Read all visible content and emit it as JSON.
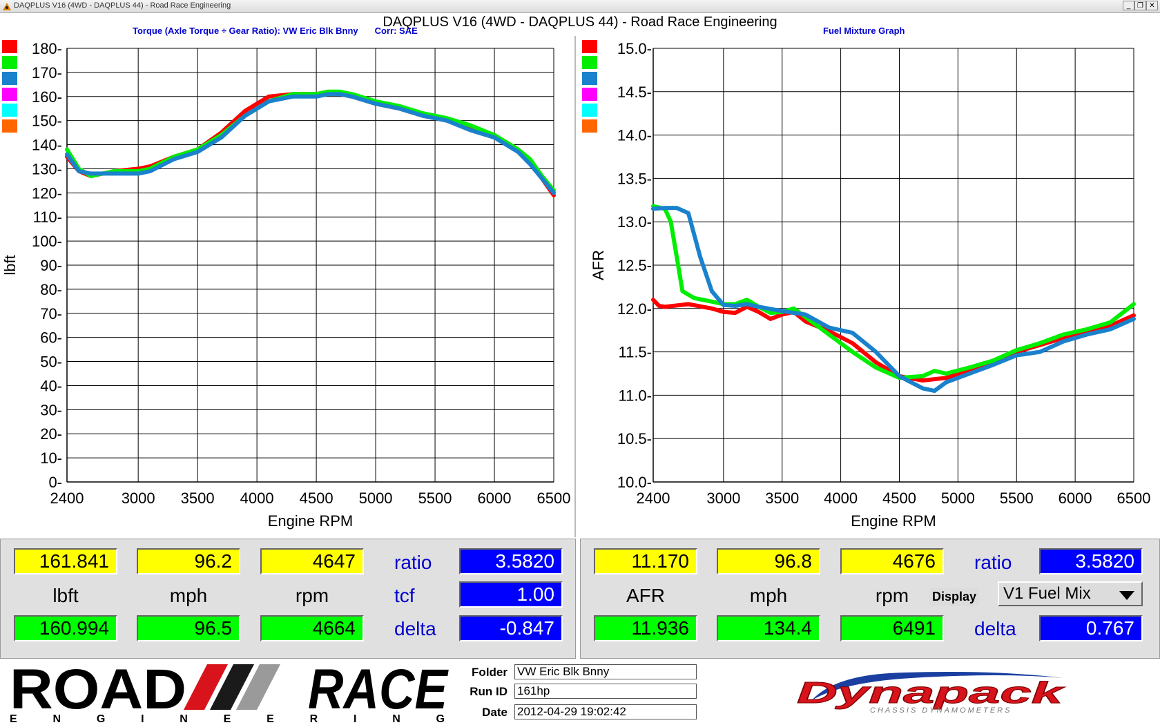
{
  "window": {
    "title": "DAQPLUS V16 (4WD - DAQPLUS 44) - Road Race Engineering",
    "app_title": "DAQPLUS V16 (4WD - DAQPLUS 44) - Road Race Engineering",
    "controls": {
      "minimize": "_",
      "restore": "❐",
      "close": "✕"
    }
  },
  "run_colors": [
    "#ff0000",
    "#00ee00",
    "#1a82cc",
    "#ff00ff",
    "#00ffff",
    "#ff6600"
  ],
  "chart_data": [
    {
      "type": "line",
      "title": "Torque (Axle Torque ÷ Gear Ratio): VW Eric Blk Bnny",
      "subtitle": "Corr: SAE",
      "xlabel": "Engine RPM",
      "ylabel": "lbft",
      "xlim": [
        2400,
        6500
      ],
      "ylim": [
        0,
        180
      ],
      "xticks": [
        2400,
        3000,
        3500,
        4000,
        4500,
        5000,
        5500,
        6000,
        6500
      ],
      "yticks": [
        0,
        10,
        20,
        30,
        40,
        50,
        60,
        70,
        80,
        90,
        100,
        110,
        120,
        130,
        140,
        150,
        160,
        170,
        180
      ],
      "grid": true,
      "series": [
        {
          "color": "#ff0000",
          "x": [
            2400,
            2500,
            2600,
            2800,
            3000,
            3100,
            3300,
            3500,
            3700,
            3900,
            4100,
            4300,
            4500,
            4600,
            4700,
            4800,
            5000,
            5200,
            5400,
            5600,
            5800,
            6000,
            6100,
            6200,
            6300,
            6400,
            6500
          ],
          "y": [
            135,
            129,
            127,
            129,
            130,
            131,
            135,
            138,
            145,
            154,
            160,
            161,
            161,
            162,
            161,
            160,
            157,
            155,
            152,
            150,
            147,
            143,
            141,
            138,
            133,
            126,
            119
          ]
        },
        {
          "color": "#00ee00",
          "x": [
            2400,
            2500,
            2600,
            2800,
            3000,
            3100,
            3300,
            3500,
            3700,
            3900,
            4100,
            4300,
            4500,
            4600,
            4700,
            4800,
            5000,
            5200,
            5400,
            5600,
            5800,
            6000,
            6100,
            6200,
            6300,
            6400,
            6500
          ],
          "y": [
            138,
            130,
            127,
            129,
            129,
            130,
            135,
            138,
            144,
            152,
            158,
            161,
            161,
            162,
            162,
            161,
            158,
            156,
            153,
            151,
            148,
            144,
            141,
            138,
            134,
            127,
            121
          ]
        },
        {
          "color": "#1a82cc",
          "x": [
            2400,
            2500,
            2600,
            2800,
            3000,
            3100,
            3300,
            3500,
            3700,
            3900,
            4100,
            4300,
            4500,
            4600,
            4700,
            4800,
            5000,
            5200,
            5400,
            5600,
            5800,
            6000,
            6100,
            6200,
            6300,
            6400,
            6500
          ],
          "y": [
            136,
            129,
            128,
            128,
            128,
            129,
            134,
            137,
            143,
            152,
            158,
            160,
            160,
            161,
            161,
            160,
            157,
            155,
            152,
            150,
            146,
            143,
            140,
            137,
            132,
            126,
            120
          ]
        }
      ]
    },
    {
      "type": "line",
      "title": "Fuel Mixture Graph",
      "xlabel": "Engine RPM",
      "ylabel": "AFR",
      "xlim": [
        2400,
        6500
      ],
      "ylim": [
        10.0,
        15.0
      ],
      "xticks": [
        2400,
        3000,
        3500,
        4000,
        4500,
        5000,
        5500,
        6000,
        6500
      ],
      "yticks": [
        10.0,
        10.5,
        11.0,
        11.5,
        12.0,
        12.5,
        13.0,
        13.5,
        14.0,
        14.5,
        15.0
      ],
      "grid": true,
      "series": [
        {
          "color": "#ff0000",
          "x": [
            2400,
            2450,
            2500,
            2700,
            2900,
            3000,
            3100,
            3200,
            3300,
            3400,
            3500,
            3600,
            3700,
            3900,
            4100,
            4300,
            4500,
            4700,
            4900,
            5100,
            5300,
            5500,
            5700,
            5900,
            6100,
            6300,
            6500
          ],
          "y": [
            12.1,
            12.03,
            12.02,
            12.05,
            12.0,
            11.96,
            11.95,
            12.02,
            11.96,
            11.88,
            11.93,
            11.96,
            11.85,
            11.74,
            11.6,
            11.38,
            11.22,
            11.17,
            11.2,
            11.28,
            11.38,
            11.5,
            11.58,
            11.66,
            11.73,
            11.8,
            11.92
          ]
        },
        {
          "color": "#00ee00",
          "x": [
            2400,
            2500,
            2550,
            2600,
            2650,
            2750,
            2900,
            3000,
            3100,
            3200,
            3300,
            3400,
            3500,
            3600,
            3700,
            3900,
            4100,
            4300,
            4500,
            4700,
            4800,
            4900,
            5100,
            5300,
            5500,
            5700,
            5900,
            6100,
            6300,
            6500
          ],
          "y": [
            13.18,
            13.15,
            13.0,
            12.6,
            12.2,
            12.12,
            12.08,
            12.05,
            12.05,
            12.1,
            12.02,
            11.95,
            11.96,
            12.0,
            11.9,
            11.7,
            11.5,
            11.32,
            11.2,
            11.22,
            11.28,
            11.25,
            11.32,
            11.4,
            11.52,
            11.6,
            11.7,
            11.76,
            11.84,
            12.05
          ]
        },
        {
          "color": "#1a82cc",
          "x": [
            2400,
            2500,
            2600,
            2700,
            2800,
            2900,
            3000,
            3100,
            3200,
            3300,
            3500,
            3700,
            3900,
            4100,
            4300,
            4500,
            4700,
            4800,
            4900,
            5100,
            5300,
            5500,
            5700,
            5900,
            6100,
            6300,
            6500
          ],
          "y": [
            13.15,
            13.16,
            13.16,
            13.1,
            12.6,
            12.2,
            12.04,
            12.03,
            12.05,
            12.02,
            11.97,
            11.93,
            11.78,
            11.72,
            11.5,
            11.22,
            11.08,
            11.05,
            11.15,
            11.25,
            11.35,
            11.46,
            11.5,
            11.62,
            11.7,
            11.76,
            11.88
          ]
        }
      ]
    }
  ],
  "left_readout": {
    "row1": [
      "161.841",
      "96.2",
      "4647"
    ],
    "units": [
      "lbft",
      "mph",
      "rpm"
    ],
    "row2": [
      "160.994",
      "96.5",
      "4664"
    ],
    "labels": {
      "ratio": "ratio",
      "tcf": "tcf",
      "delta": "delta"
    },
    "values": {
      "ratio": "3.5820",
      "tcf": "1.00",
      "delta": "-0.847"
    }
  },
  "right_readout": {
    "row1": [
      "11.170",
      "96.8",
      "4676"
    ],
    "units": [
      "AFR",
      "mph",
      "rpm"
    ],
    "row2": [
      "11.936",
      "134.4",
      "6491"
    ],
    "labels": {
      "ratio": "ratio",
      "display": "Display",
      "delta": "delta"
    },
    "values": {
      "ratio": "3.5820",
      "display": "V1 Fuel Mix",
      "delta": "0.767"
    }
  },
  "footer": {
    "logo_main": "ROAD",
    "logo_right": "RACE",
    "logo_sub": "E N G I N E E R I N G",
    "folder_label": "Folder",
    "folder_value": "VW Eric Blk Bnny",
    "runid_label": "Run ID",
    "runid_value": "161hp",
    "date_label": "Date",
    "date_value": "2012-04-29 19:02:42",
    "brand": "Dynapack",
    "brand_sub": "CHASSIS DYNAMOMETERS"
  }
}
